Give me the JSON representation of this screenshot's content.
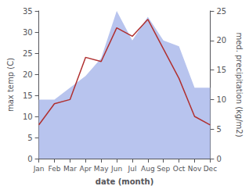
{
  "chart_data": {
    "type": "line",
    "categories": [
      "Jan",
      "Feb",
      "Mar",
      "Apr",
      "May",
      "Jun",
      "Jul",
      "Aug",
      "Sep",
      "Oct",
      "Nov",
      "Dec"
    ],
    "xlabel": "date (month)",
    "ylabel": "max temp (C)",
    "y2label": "med. precipitation (kg/m2)",
    "ylim": [
      0,
      35
    ],
    "yticks": [
      0,
      5,
      10,
      15,
      20,
      25,
      30,
      35
    ],
    "y2lim": [
      0,
      25
    ],
    "y2ticks": [
      0,
      5,
      10,
      15,
      20,
      25
    ],
    "grid": false,
    "series": [
      {
        "type": "area",
        "color": "#b8c4ee",
        "axis": "y2",
        "values": [
          10,
          10,
          12,
          14,
          17,
          25,
          20,
          24,
          20,
          19,
          12,
          12
        ]
      },
      {
        "type": "line",
        "color": "#b03030",
        "values": [
          8.0,
          13.0,
          14.0,
          24.0,
          23.0,
          31.0,
          29.0,
          33.0,
          26.0,
          19.0,
          10.0,
          8.0
        ]
      }
    ]
  }
}
